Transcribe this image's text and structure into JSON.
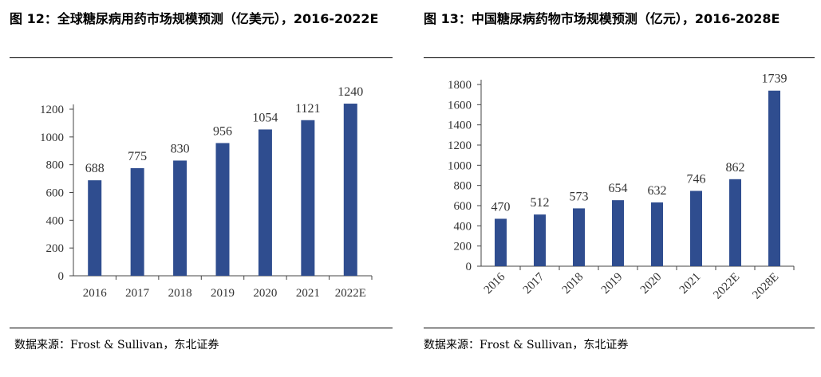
{
  "left": {
    "figure_title": "图 12：全球糖尿病用药市场规模预测（亿美元），2016-2022E",
    "source": "数据来源：Frost & Sullivan，东北证券"
  },
  "right": {
    "figure_title": "图 13：中国糖尿病药物市场规模预测（亿元），2016-2028E",
    "source": "数据来源：Frost & Sullivan，东北证券"
  },
  "colors": {
    "bar": "#2f4d8f",
    "axis": "#444444"
  },
  "chart_data": [
    {
      "type": "bar",
      "title": "全球糖尿病用药市场规模预测（亿美元），2016-2022E",
      "categories": [
        "2016",
        "2017",
        "2018",
        "2019",
        "2020",
        "2021",
        "2022E"
      ],
      "values": [
        688,
        775,
        830,
        956,
        1054,
        1121,
        1240
      ],
      "ylim": [
        0,
        1200
      ],
      "yticks": [
        0,
        200,
        400,
        600,
        800,
        1000,
        1200
      ],
      "xlabel": "",
      "ylabel": "",
      "grid": false,
      "xtick_rotation": 0
    },
    {
      "type": "bar",
      "title": "中国糖尿病药物市场规模预测（亿元），2016-2028E",
      "categories": [
        "2016",
        "2017",
        "2018",
        "2019",
        "2020",
        "2021",
        "2022E",
        "2028E"
      ],
      "values": [
        470,
        512,
        573,
        654,
        632,
        746,
        862,
        1739
      ],
      "ylim": [
        0,
        1800
      ],
      "yticks": [
        0,
        200,
        400,
        600,
        800,
        1000,
        1200,
        1400,
        1600,
        1800
      ],
      "xlabel": "",
      "ylabel": "",
      "grid": false,
      "xtick_rotation": -45
    }
  ]
}
